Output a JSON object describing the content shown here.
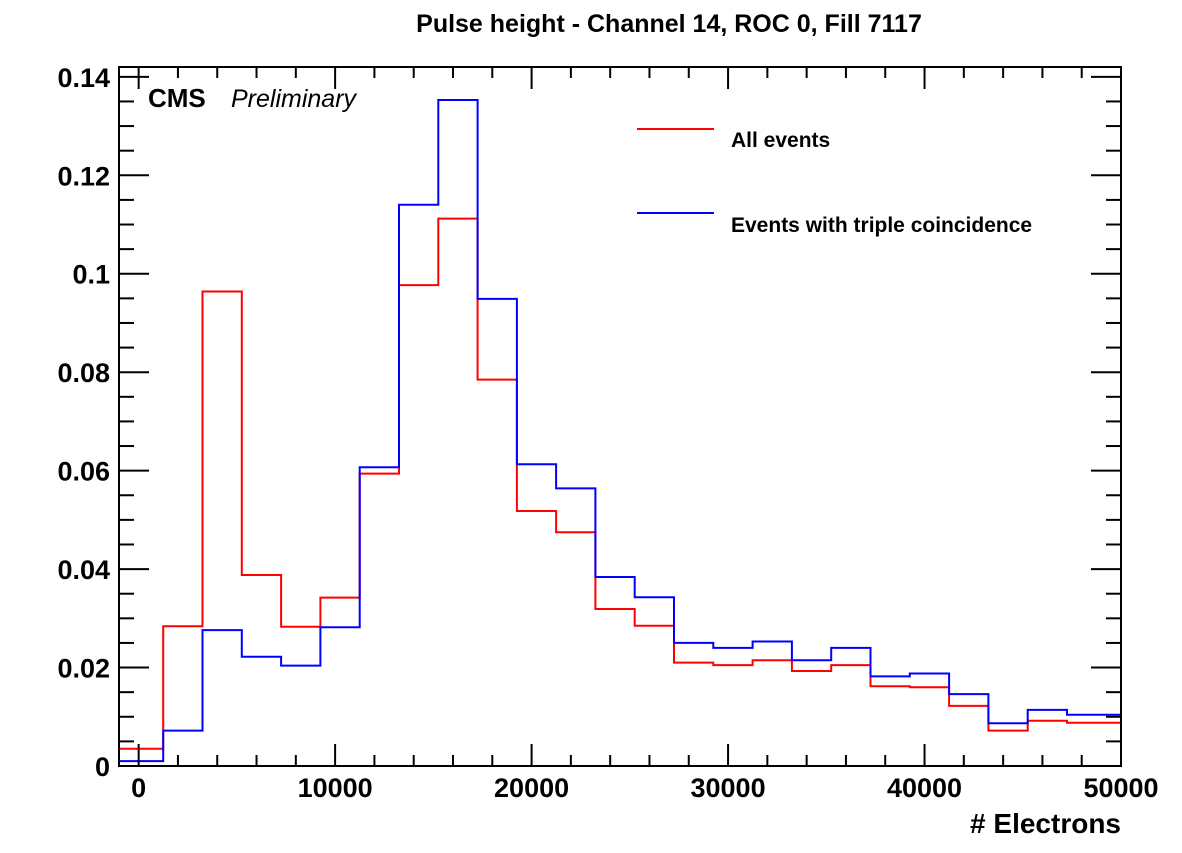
{
  "chart_data": {
    "type": "histogram",
    "title": "Pulse height - Channel 14, ROC 0, Fill 7117",
    "xlabel": "# Electrons",
    "ylabel": "",
    "xlim": [
      -1000,
      50000
    ],
    "ylim": [
      0,
      0.142
    ],
    "x_ticks": [
      0,
      10000,
      20000,
      30000,
      40000,
      50000
    ],
    "x_tick_labels": [
      "0",
      "10000",
      "20000",
      "30000",
      "40000",
      "50000"
    ],
    "y_ticks": [
      0,
      0.02,
      0.04,
      0.06,
      0.08,
      0.1,
      0.12,
      0.14
    ],
    "y_tick_labels": [
      "0",
      "0.02",
      "0.04",
      "0.06",
      "0.08",
      "0.1",
      "0.12",
      "0.14"
    ],
    "grid": false,
    "legend_position": "top-right",
    "bin_edges": [
      -1000,
      1250,
      3250,
      5250,
      7250,
      9250,
      11250,
      13250,
      15250,
      17250,
      19250,
      21250,
      23250,
      25250,
      27250,
      29250,
      31250,
      33250,
      35250,
      37250,
      39250,
      41250,
      43250,
      45250,
      47250,
      50000
    ],
    "series": [
      {
        "name": "All events",
        "color": "#ff0000",
        "values": [
          0.0035,
          0.0284,
          0.0964,
          0.0388,
          0.0283,
          0.0342,
          0.0594,
          0.0977,
          0.1112,
          0.0785,
          0.0518,
          0.0475,
          0.0319,
          0.0285,
          0.021,
          0.0205,
          0.0215,
          0.0193,
          0.0205,
          0.0162,
          0.016,
          0.0122,
          0.0072,
          0.0092,
          0.0088
        ]
      },
      {
        "name": "Events with triple coincidence",
        "color": "#0000ff",
        "values": [
          0.001,
          0.0072,
          0.0276,
          0.0222,
          0.0204,
          0.0282,
          0.0607,
          0.114,
          0.1353,
          0.0949,
          0.0613,
          0.0564,
          0.0384,
          0.0343,
          0.025,
          0.024,
          0.0253,
          0.0215,
          0.024,
          0.0182,
          0.0188,
          0.0146,
          0.0087,
          0.0114,
          0.0104
        ]
      }
    ],
    "annotations": {
      "experiment": "CMS",
      "status": "Preliminary"
    }
  }
}
